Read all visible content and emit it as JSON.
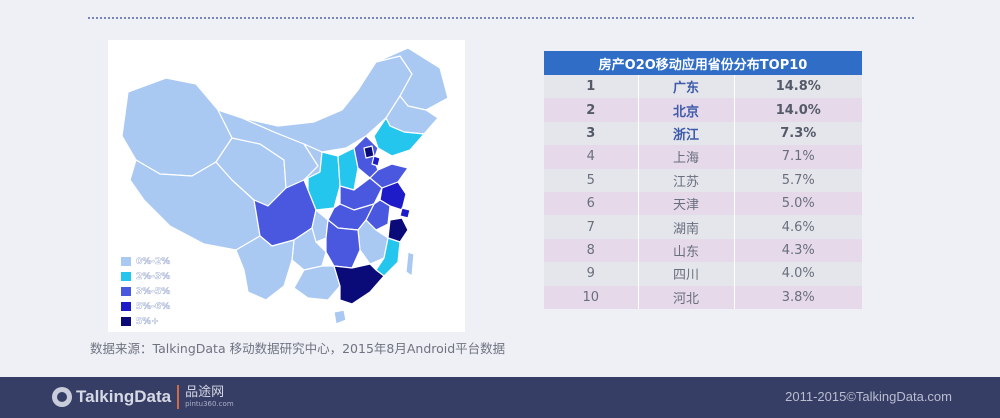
{
  "chart_data": [
    {
      "type": "map",
      "legend": [
        {
          "label": "0%-2%",
          "color": "#a9c9f2"
        },
        {
          "label": "2%-3%",
          "color": "#24c6ee"
        },
        {
          "label": "3%-5%",
          "color": "#4a58e0"
        },
        {
          "label": "5%-6%",
          "color": "#1d1cc8"
        },
        {
          "label": "5%+",
          "color": "#0a0a78"
        }
      ]
    },
    {
      "type": "table",
      "title": "房产O2O移动应用省份分布TOP10",
      "rows": [
        {
          "rank": "1",
          "province": "广东",
          "value": "14.8%"
        },
        {
          "rank": "2",
          "province": "北京",
          "value": "14.0%"
        },
        {
          "rank": "3",
          "province": "浙江",
          "value": "7.3%"
        },
        {
          "rank": "4",
          "province": "上海",
          "value": "7.1%"
        },
        {
          "rank": "5",
          "province": "江苏",
          "value": "5.7%"
        },
        {
          "rank": "6",
          "province": "天津",
          "value": "5.0%"
        },
        {
          "rank": "7",
          "province": "湖南",
          "value": "4.6%"
        },
        {
          "rank": "8",
          "province": "山东",
          "value": "4.3%"
        },
        {
          "rank": "9",
          "province": "四川",
          "value": "4.0%"
        },
        {
          "rank": "10",
          "province": "河北",
          "value": "3.8%"
        }
      ]
    }
  ],
  "source": "数据来源：TalkingData 移动数据研究中心，2015年8月Android平台数据",
  "footer": {
    "logo": "TalkingData",
    "partner_cn": "品途网",
    "partner_en": "pintu360.com",
    "copyright": "2011-2015©TalkingData.com"
  },
  "colors": {
    "header": "#2f6dc6",
    "footer": "#373e66",
    "row_odd": "#e4e6eb",
    "row_even": "#e5d9ea"
  }
}
